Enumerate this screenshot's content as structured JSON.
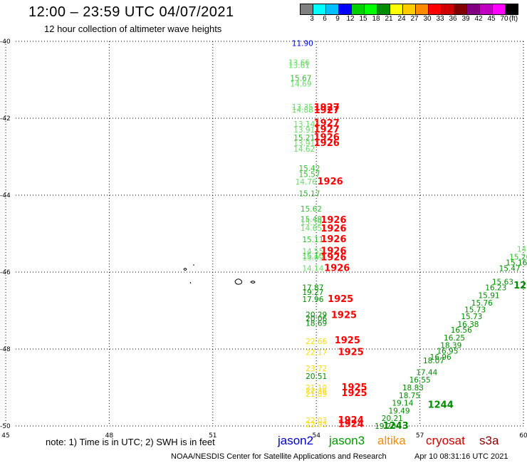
{
  "title": "12:00 – 23:59 UTC 04/07/2021",
  "subtitle": "12 hour collection of altimeter wave heights",
  "colorbar": {
    "colors": [
      "#808080",
      "#00ffff",
      "#00bfff",
      "#0000ff",
      "#00d000",
      "#00ff00",
      "#008c00",
      "#ffff00",
      "#ffcc00",
      "#ff8c00",
      "#ff0000",
      "#d00000",
      "#800000",
      "#800080",
      "#c000c0",
      "#ff00ff",
      "#000000"
    ],
    "labels": [
      "3",
      "6",
      "9",
      "12",
      "15",
      "18",
      "21",
      "24",
      "27",
      "30",
      "33",
      "36",
      "39",
      "42",
      "45",
      "70",
      "(ft)"
    ]
  },
  "axes": {
    "lat_ticks": [
      "-40",
      "-42",
      "-44",
      "-46",
      "-48",
      "-50"
    ],
    "lon_ticks": [
      "45",
      "48",
      "51",
      "54",
      "57",
      "60"
    ]
  },
  "note": "note:  1) Time is in UTC;  2) SWH is in feet",
  "legend": [
    {
      "label": "jason2",
      "color": "#0000cc"
    },
    {
      "label": "jason3",
      "color": "#009900"
    },
    {
      "label": "altika",
      "color": "#ff8c00"
    },
    {
      "label": "cryosat",
      "color": "#cc0000"
    },
    {
      "label": "s3a",
      "color": "#880000"
    }
  ],
  "footer_left": "NOAA/NESDIS Center for Satellite Applications and Research",
  "footer_right": "Apr 10 08:31:16 UTC 2021",
  "chart_data": {
    "type": "scatter",
    "x_range": [
      45,
      60
    ],
    "y_range": [
      -50,
      -40
    ],
    "track_labels": [
      {
        "lon": 53.6,
        "lat": -40.05,
        "value": "11.90",
        "color": "#0000ff"
      },
      {
        "lon": 53.5,
        "lat": -40.55,
        "value": "13.66",
        "color": "#66dd66"
      },
      {
        "lon": 53.5,
        "lat": -40.62,
        "value": "13.61",
        "color": "#66dd66"
      },
      {
        "lon": 53.55,
        "lat": -40.95,
        "value": "15.67",
        "color": "#33bb33"
      },
      {
        "lon": 53.55,
        "lat": -41.1,
        "value": "14.69",
        "color": "#66dd66"
      },
      {
        "lon": 53.6,
        "lat": -41.7,
        "value": "13.35",
        "color": "#66dd66"
      },
      {
        "lon": 53.6,
        "lat": -41.78,
        "value": "14.88",
        "color": "#66dd66"
      },
      {
        "lon": 54.3,
        "lat": -41.72,
        "value": "1927",
        "color": "#ff0000",
        "bold": true
      },
      {
        "lon": 54.3,
        "lat": -41.8,
        "value": "1927",
        "color": "#ff0000",
        "bold": true
      },
      {
        "lon": 53.65,
        "lat": -42.15,
        "value": "13.14",
        "color": "#66dd66"
      },
      {
        "lon": 53.65,
        "lat": -42.3,
        "value": "13.91",
        "color": "#66dd66"
      },
      {
        "lon": 54.3,
        "lat": -42.13,
        "value": "1927",
        "color": "#ff0000",
        "bold": true
      },
      {
        "lon": 54.3,
        "lat": -42.3,
        "value": "1927",
        "color": "#ff0000",
        "bold": true
      },
      {
        "lon": 53.65,
        "lat": -42.5,
        "value": "15.21",
        "color": "#33bb33"
      },
      {
        "lon": 53.65,
        "lat": -42.65,
        "value": "13.91",
        "color": "#66dd66"
      },
      {
        "lon": 53.65,
        "lat": -42.8,
        "value": "14.62",
        "color": "#66dd66"
      },
      {
        "lon": 54.3,
        "lat": -42.5,
        "value": "1926",
        "color": "#ff0000",
        "bold": true
      },
      {
        "lon": 54.3,
        "lat": -42.65,
        "value": "1926",
        "color": "#ff0000",
        "bold": true
      },
      {
        "lon": 53.8,
        "lat": -43.3,
        "value": "15.42",
        "color": "#33bb33"
      },
      {
        "lon": 53.8,
        "lat": -43.45,
        "value": "15.57",
        "color": "#33bb33"
      },
      {
        "lon": 53.7,
        "lat": -43.65,
        "value": "14.76",
        "color": "#66dd66"
      },
      {
        "lon": 53.8,
        "lat": -43.95,
        "value": "15.17",
        "color": "#33bb33"
      },
      {
        "lon": 54.4,
        "lat": -43.65,
        "value": "1926",
        "color": "#ff0000",
        "bold": true
      },
      {
        "lon": 53.85,
        "lat": -44.35,
        "value": "15.62",
        "color": "#33bb33"
      },
      {
        "lon": 53.85,
        "lat": -44.62,
        "value": "15.48",
        "color": "#33bb33"
      },
      {
        "lon": 53.85,
        "lat": -44.7,
        "value": "15.39",
        "color": "#66dd66"
      },
      {
        "lon": 53.85,
        "lat": -44.85,
        "value": "14.65",
        "color": "#66dd66"
      },
      {
        "lon": 54.5,
        "lat": -44.65,
        "value": "1926",
        "color": "#ff0000",
        "bold": true
      },
      {
        "lon": 54.5,
        "lat": -44.87,
        "value": "1926",
        "color": "#ff0000",
        "bold": true
      },
      {
        "lon": 53.9,
        "lat": -45.15,
        "value": "15.11",
        "color": "#33bb33"
      },
      {
        "lon": 54.5,
        "lat": -45.15,
        "value": "1926",
        "color": "#ff0000",
        "bold": true
      },
      {
        "lon": 53.9,
        "lat": -45.45,
        "value": "14.55",
        "color": "#66dd66"
      },
      {
        "lon": 53.9,
        "lat": -45.57,
        "value": "15.10",
        "color": "#33bb33"
      },
      {
        "lon": 53.9,
        "lat": -45.62,
        "value": "15.09",
        "color": "#66dd66"
      },
      {
        "lon": 54.5,
        "lat": -45.45,
        "value": "1926",
        "color": "#ff0000",
        "bold": true
      },
      {
        "lon": 54.5,
        "lat": -45.62,
        "value": "1926",
        "color": "#ff0000",
        "bold": true
      },
      {
        "lon": 53.9,
        "lat": -45.9,
        "value": "14.14",
        "color": "#66dd66"
      },
      {
        "lon": 54.6,
        "lat": -45.9,
        "value": "1926",
        "color": "#ff0000",
        "bold": true
      },
      {
        "lon": 53.9,
        "lat": -46.4,
        "value": "17.87",
        "color": "#008c00"
      },
      {
        "lon": 53.9,
        "lat": -46.52,
        "value": "19.27",
        "color": "#008c00"
      },
      {
        "lon": 53.9,
        "lat": -46.7,
        "value": "17.96",
        "color": "#008c00"
      },
      {
        "lon": 54.7,
        "lat": -46.7,
        "value": "1925",
        "color": "#ff0000",
        "bold": true
      },
      {
        "lon": 54.0,
        "lat": -47.1,
        "value": "20.29",
        "color": "#008c00"
      },
      {
        "lon": 54.0,
        "lat": -47.2,
        "value": "20.06",
        "color": "#008c00"
      },
      {
        "lon": 54.0,
        "lat": -47.32,
        "value": "18.69",
        "color": "#008c00"
      },
      {
        "lon": 54.8,
        "lat": -47.12,
        "value": "1925",
        "color": "#ff0000",
        "bold": true
      },
      {
        "lon": 54.0,
        "lat": -47.8,
        "value": "22.66",
        "color": "#ffdd00"
      },
      {
        "lon": 54.9,
        "lat": -47.78,
        "value": "1925",
        "color": "#ff0000",
        "bold": true
      },
      {
        "lon": 54.0,
        "lat": -48.08,
        "value": "22.17",
        "color": "#ffdd00"
      },
      {
        "lon": 55.0,
        "lat": -48.08,
        "value": "1925",
        "color": "#ff0000",
        "bold": true
      },
      {
        "lon": 54.0,
        "lat": -48.5,
        "value": "23.72",
        "color": "#ffdd00"
      },
      {
        "lon": 54.0,
        "lat": -48.7,
        "value": "20.51",
        "color": "#008c00"
      },
      {
        "lon": 54.0,
        "lat": -49.0,
        "value": "21.10",
        "color": "#ffdd00"
      },
      {
        "lon": 54.0,
        "lat": -49.08,
        "value": "22.36",
        "color": "#ffdd00"
      },
      {
        "lon": 54.0,
        "lat": -49.17,
        "value": "21.89",
        "color": "#ffdd00"
      },
      {
        "lon": 55.1,
        "lat": -49.0,
        "value": "1925",
        "color": "#ff0000",
        "bold": true
      },
      {
        "lon": 55.1,
        "lat": -49.15,
        "value": "1925",
        "color": "#ff0000",
        "bold": true
      },
      {
        "lon": 54.0,
        "lat": -49.85,
        "value": "22.03",
        "color": "#ffdd00"
      },
      {
        "lon": 54.0,
        "lat": -49.95,
        "value": "22.93",
        "color": "#ffdd00"
      },
      {
        "lon": 55.0,
        "lat": -49.85,
        "value": "1924",
        "color": "#ff0000",
        "bold": true
      },
      {
        "lon": 55.0,
        "lat": -49.95,
        "value": "1924",
        "color": "#ff0000",
        "bold": true
      },
      {
        "lon": 56.3,
        "lat": -50.0,
        "value": "1243",
        "color": "#008c00",
        "bold": true
      },
      {
        "lon": 57.6,
        "lat": -49.45,
        "value": "1244",
        "color": "#008c00",
        "bold": true
      },
      {
        "lon": 59.9,
        "lat": -46.35,
        "value": "12",
        "color": "#008c00",
        "bold": true
      },
      {
        "lon": 56.0,
        "lat": -50.0,
        "value": "19.20",
        "color": "#008c00"
      },
      {
        "lon": 56.2,
        "lat": -49.8,
        "value": "20.21",
        "color": "#008c00"
      },
      {
        "lon": 56.4,
        "lat": -49.6,
        "value": "19.49",
        "color": "#008c00"
      },
      {
        "lon": 56.5,
        "lat": -49.4,
        "value": "19.14",
        "color": "#008c00"
      },
      {
        "lon": 56.7,
        "lat": -49.2,
        "value": "18.75",
        "color": "#008c00"
      },
      {
        "lon": 56.8,
        "lat": -49.0,
        "value": "18.83",
        "color": "#008c00"
      },
      {
        "lon": 57.0,
        "lat": -48.8,
        "value": "16.55",
        "color": "#008c00"
      },
      {
        "lon": 57.2,
        "lat": -48.6,
        "value": "17.44",
        "color": "#008c00"
      },
      {
        "lon": 57.4,
        "lat": -48.3,
        "value": "18.07",
        "color": "#008c00"
      },
      {
        "lon": 57.6,
        "lat": -48.2,
        "value": "16.96",
        "color": "#008c00"
      },
      {
        "lon": 57.8,
        "lat": -48.05,
        "value": "16.95",
        "color": "#008c00"
      },
      {
        "lon": 57.9,
        "lat": -47.9,
        "value": "18.39",
        "color": "#008c00"
      },
      {
        "lon": 58.0,
        "lat": -47.7,
        "value": "16.25",
        "color": "#008c00"
      },
      {
        "lon": 58.2,
        "lat": -47.5,
        "value": "16.56",
        "color": "#008c00"
      },
      {
        "lon": 58.4,
        "lat": -47.35,
        "value": "16.38",
        "color": "#008c00"
      },
      {
        "lon": 58.5,
        "lat": -47.15,
        "value": "15.73",
        "color": "#008c00"
      },
      {
        "lon": 58.6,
        "lat": -46.97,
        "value": "15.73",
        "color": "#008c00"
      },
      {
        "lon": 58.8,
        "lat": -46.8,
        "value": "15.76",
        "color": "#008c00"
      },
      {
        "lon": 59.0,
        "lat": -46.6,
        "value": "15.91",
        "color": "#008c00"
      },
      {
        "lon": 59.2,
        "lat": -46.4,
        "value": "16.23",
        "color": "#008c00"
      },
      {
        "lon": 59.4,
        "lat": -46.25,
        "value": "15.63",
        "color": "#008c00"
      },
      {
        "lon": 59.6,
        "lat": -45.9,
        "value": "15.47",
        "color": "#008c00"
      },
      {
        "lon": 59.8,
        "lat": -45.75,
        "value": "15.16",
        "color": "#008c00"
      },
      {
        "lon": 59.9,
        "lat": -45.6,
        "value": "15.26",
        "color": "#33bb33"
      },
      {
        "lon": 59.95,
        "lat": -45.4,
        "value": "14",
        "color": "#66dd66"
      }
    ]
  }
}
